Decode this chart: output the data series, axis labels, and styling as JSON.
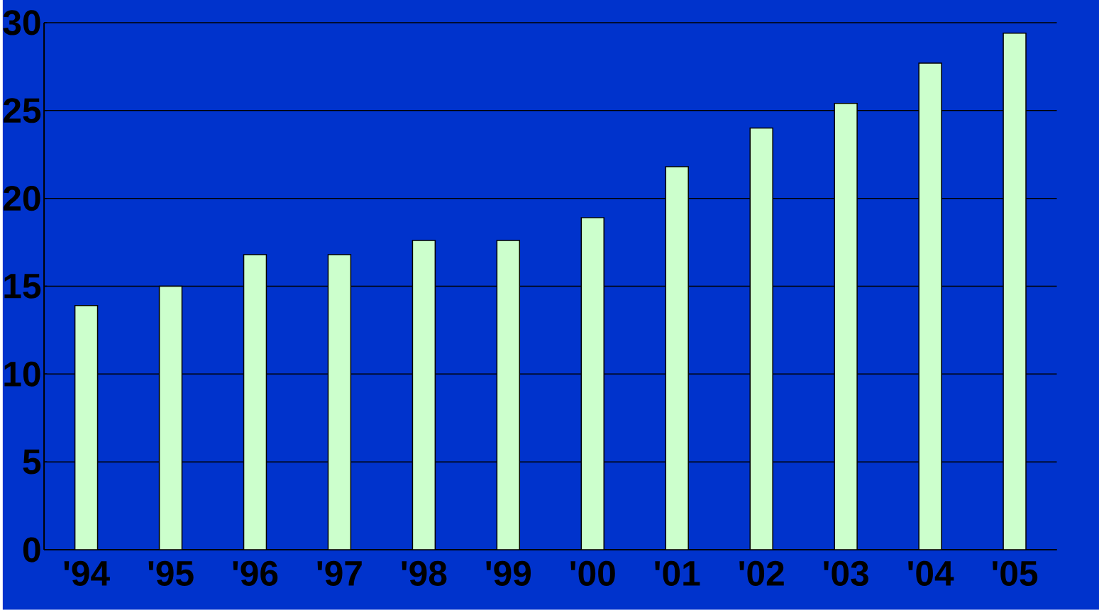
{
  "chart_data": {
    "type": "bar",
    "categories": [
      "'94",
      "'95",
      "'96",
      "'97",
      "'98",
      "'99",
      "'00",
      "'01",
      "'02",
      "'03",
      "'04",
      "'05"
    ],
    "values": [
      13.9,
      15.0,
      16.8,
      16.8,
      17.6,
      17.6,
      18.9,
      21.8,
      24.0,
      25.4,
      27.7,
      29.4
    ],
    "color": "#ccffcc",
    "ylim": [
      0,
      30
    ],
    "yticks": [
      0,
      5,
      10,
      15,
      20,
      25,
      30
    ],
    "grid": "y"
  }
}
